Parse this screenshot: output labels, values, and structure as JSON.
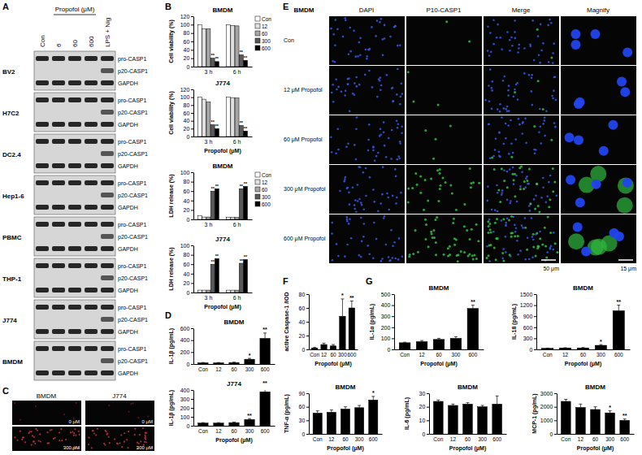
{
  "panel_labels": [
    "A",
    "B",
    "C",
    "D",
    "E",
    "F",
    "G"
  ],
  "blot": {
    "title": "Propofol (μM)",
    "lanes": [
      "Con",
      "6",
      "60",
      "600",
      "LPS + Nig"
    ],
    "groups": [
      {
        "cell": "BV2",
        "bands": [
          "pro-CASP1",
          "p20-CASP1",
          "GAPDH"
        ]
      },
      {
        "cell": "H7C2",
        "bands": [
          "pro-CASP1",
          "p20-CASP1",
          "GAPDH"
        ]
      },
      {
        "cell": "DC2.4",
        "bands": [
          "pro-CASP1",
          "p20-CASP1",
          "GAPDH"
        ]
      },
      {
        "cell": "Hep1-6",
        "bands": [
          "pro-CASP1",
          "p20-CASP1",
          "GAPDH"
        ]
      },
      {
        "cell": "PBMC",
        "bands": [
          "pro-CASP1",
          "p20-CASP1",
          "GAPDH"
        ]
      },
      {
        "cell": "THP-1",
        "bands": [
          "pro-CASP1",
          "p20-CASP1",
          "GAPDH"
        ]
      },
      {
        "cell": "J774",
        "bands": [
          "pro-CASP1",
          "p20-CASP1",
          "GAPDH"
        ]
      },
      {
        "cell": "BMDM",
        "bands": [
          "pro-CASP1",
          "p20-CASP1",
          "GAPDH"
        ]
      }
    ]
  },
  "micrograph_c": {
    "columns": [
      "BMDM",
      "J774"
    ],
    "dose_labels": [
      "0 μM",
      "300 μM"
    ]
  },
  "micrograph_e": {
    "cell": "BMDM",
    "columns": [
      "DAPI",
      "P10-CASP1",
      "Merge",
      "Magnify"
    ],
    "rows": [
      "Con",
      "12 μM Propofol",
      "60 μM Propofol",
      "300 μM Propofol",
      "600 μM Propofol"
    ],
    "scale_bars": [
      "50 μm",
      "15 μm"
    ]
  },
  "chart_data": [
    {
      "type": "bar",
      "title": "BMDM",
      "y_label": "Cell viability (%)",
      "categories": [
        "3 h",
        "6 h"
      ],
      "series": [
        {
          "name": "Con",
          "color": "#ffffff",
          "values": [
            100,
            100
          ]
        },
        {
          "name": "12",
          "color": "#e0e0e0",
          "values": [
            90,
            98
          ]
        },
        {
          "name": "60",
          "color": "#a6a6a6",
          "values": [
            90,
            97
          ]
        },
        {
          "name": "300",
          "color": "#595959",
          "values": [
            20,
            28
          ]
        },
        {
          "name": "600",
          "color": "#000000",
          "values": [
            12,
            15
          ]
        }
      ],
      "ylim": [
        0,
        120
      ],
      "yticks": [
        0,
        20,
        40,
        60,
        80,
        100,
        120
      ],
      "legend": "right",
      "annotations": [
        {
          "text": "**",
          "series": 3,
          "category": 0
        },
        {
          "text": "**",
          "series": 4,
          "category": 0
        },
        {
          "text": "**",
          "series": 3,
          "category": 1
        },
        {
          "text": "**",
          "series": 4,
          "category": 1
        }
      ]
    },
    {
      "type": "bar",
      "title": "J774",
      "y_label": "Cell viability (%)",
      "x_label": "Propofol (μM)",
      "categories": [
        "3 h",
        "6 h"
      ],
      "series": [
        {
          "name": "Con",
          "color": "#ffffff",
          "values": [
            100,
            100
          ]
        },
        {
          "name": "12",
          "color": "#e0e0e0",
          "values": [
            95,
            99
          ]
        },
        {
          "name": "60",
          "color": "#a6a6a6",
          "values": [
            88,
            98
          ]
        },
        {
          "name": "300",
          "color": "#595959",
          "values": [
            30,
            28
          ]
        },
        {
          "name": "600",
          "color": "#000000",
          "values": [
            20,
            14
          ]
        }
      ],
      "ylim": [
        0,
        120
      ],
      "yticks": [
        0,
        20,
        40,
        60,
        80,
        100,
        120
      ],
      "annotations": [
        {
          "text": "**",
          "series": 3,
          "category": 0
        },
        {
          "text": "**",
          "series": 4,
          "category": 0
        },
        {
          "text": "**",
          "series": 3,
          "category": 1
        },
        {
          "text": "**",
          "series": 4,
          "category": 1
        }
      ]
    },
    {
      "type": "bar",
      "title": "BMDM",
      "y_label": "LDH release (%)",
      "categories": [
        "3 h",
        "6 h"
      ],
      "series": [
        {
          "name": "Con",
          "color": "#ffffff",
          "values": [
            8,
            4
          ]
        },
        {
          "name": "12",
          "color": "#e0e0e0",
          "values": [
            5,
            4
          ]
        },
        {
          "name": "60",
          "color": "#a6a6a6",
          "values": [
            5,
            4
          ]
        },
        {
          "name": "300",
          "color": "#595959",
          "values": [
            60,
            65
          ]
        },
        {
          "name": "600",
          "color": "#000000",
          "values": [
            65,
            70
          ]
        }
      ],
      "ylim": [
        0,
        100
      ],
      "yticks": [
        0,
        20,
        40,
        60,
        80,
        100
      ],
      "legend": "right",
      "annotations": [
        {
          "text": "**",
          "series": 3,
          "category": 0
        },
        {
          "text": "**",
          "series": 4,
          "category": 0
        },
        {
          "text": "**",
          "series": 3,
          "category": 1
        },
        {
          "text": "**",
          "series": 4,
          "category": 1
        }
      ]
    },
    {
      "type": "bar",
      "title": "J774",
      "y_label": "LDH release (%)",
      "x_label": "Propofol (μM)",
      "categories": [
        "3 h",
        "6 h"
      ],
      "series": [
        {
          "name": "Con",
          "color": "#ffffff",
          "values": [
            5,
            5
          ]
        },
        {
          "name": "12",
          "color": "#e0e0e0",
          "values": [
            5,
            5
          ]
        },
        {
          "name": "60",
          "color": "#a6a6a6",
          "values": [
            5,
            5
          ]
        },
        {
          "name": "300",
          "color": "#595959",
          "values": [
            60,
            62
          ]
        },
        {
          "name": "600",
          "color": "#000000",
          "values": [
            72,
            70
          ]
        }
      ],
      "ylim": [
        0,
        100
      ],
      "yticks": [
        0,
        20,
        40,
        60,
        80,
        100
      ],
      "annotations": [
        {
          "text": "**",
          "series": 3,
          "category": 0
        },
        {
          "text": "**",
          "series": 4,
          "category": 0
        },
        {
          "text": "**",
          "series": 3,
          "category": 1
        },
        {
          "text": "**",
          "series": 4,
          "category": 1
        }
      ]
    },
    {
      "type": "bar",
      "title": "BMDM",
      "y_label": "IL-1β (pg/mL)",
      "categories": [
        "Con",
        "12",
        "60",
        "300",
        "600"
      ],
      "values": [
        20,
        20,
        25,
        80,
        430
      ],
      "errors": [
        5,
        5,
        5,
        15,
        90
      ],
      "color": "#000000",
      "ylim": [
        0,
        600
      ],
      "yticks": [
        0,
        200,
        400,
        600
      ],
      "annotations": [
        {
          "text": "*",
          "category": 3
        },
        {
          "text": "**",
          "category": 4
        }
      ]
    },
    {
      "type": "bar",
      "title": "J774",
      "y_label": "IL-1β (pg/mL)",
      "x_label": "Propofol (μM)",
      "categories": [
        "Con",
        "12",
        "60",
        "300",
        "600"
      ],
      "values": [
        30,
        30,
        35,
        70,
        380
      ],
      "errors": [
        5,
        5,
        5,
        10,
        60
      ],
      "color": "#000000",
      "ylim": [
        0,
        400
      ],
      "yticks": [
        0,
        100,
        200,
        300,
        400
      ],
      "annotations": [
        {
          "text": "**",
          "category": 3
        },
        {
          "text": "**",
          "category": 4
        }
      ]
    },
    {
      "type": "bar",
      "y_label": "active Caspase-1 /IOD",
      "x_label": "Propofol (μM)",
      "categories": [
        "Con",
        "12",
        "60",
        "300",
        "600"
      ],
      "values": [
        2,
        7,
        5,
        48,
        60
      ],
      "errors": [
        1,
        2,
        2,
        25,
        10
      ],
      "color": "#000000",
      "ylim": [
        0,
        80
      ],
      "yticks": [
        0,
        20,
        40,
        60,
        80
      ],
      "annotations": [
        {
          "text": "*",
          "category": 3
        },
        {
          "text": "**",
          "category": 4
        }
      ]
    },
    {
      "type": "bar",
      "title": "BMDM",
      "y_label": "IL-1α (pg/mL)",
      "x_label": "Propofol (μM)",
      "categories": [
        "Con",
        "12",
        "60",
        "300",
        "600"
      ],
      "values": [
        60,
        70,
        90,
        100,
        370
      ],
      "errors": [
        5,
        10,
        10,
        15,
        30
      ],
      "color": "#000000",
      "ylim": [
        0,
        500
      ],
      "yticks": [
        0,
        100,
        200,
        300,
        400,
        500
      ],
      "annotations": [
        {
          "text": "**",
          "category": 4
        }
      ]
    },
    {
      "type": "bar",
      "title": "BMDM",
      "y_label": "IL-18 (pg/mL)",
      "x_label": "Propofol (μM)",
      "categories": [
        "Con",
        "12",
        "60",
        "300",
        "600"
      ],
      "values": [
        30,
        40,
        40,
        110,
        1050
      ],
      "errors": [
        5,
        5,
        10,
        20,
        150
      ],
      "color": "#000000",
      "ylim": [
        0,
        1500
      ],
      "yticks": [
        0,
        300,
        600,
        900,
        1200,
        1500
      ],
      "annotations": [
        {
          "text": "*",
          "category": 3
        },
        {
          "text": "**",
          "category": 4
        }
      ]
    },
    {
      "type": "bar",
      "title": "BMDM",
      "y_label": "TNF-α (pg/mL)",
      "x_label": "Propofol (μM)",
      "categories": [
        "Con",
        "12",
        "60",
        "300",
        "600"
      ],
      "values": [
        46,
        48,
        55,
        58,
        75
      ],
      "errors": [
        5,
        5,
        5,
        5,
        8
      ],
      "color": "#000000",
      "ylim": [
        0,
        90
      ],
      "yticks": [
        0,
        30,
        60,
        90
      ],
      "annotations": [
        {
          "text": "*",
          "category": 4
        }
      ]
    },
    {
      "type": "bar",
      "title": "BMDM",
      "y_label": "IL-6 (pg/mL)",
      "x_label": "Propofol (μM)",
      "categories": [
        "Con",
        "12",
        "60",
        "300",
        "600"
      ],
      "values": [
        24,
        21,
        22,
        20,
        22
      ],
      "errors": [
        1,
        1,
        1,
        1,
        6
      ],
      "color": "#000000",
      "ylim": [
        0,
        30
      ],
      "yticks": [
        0,
        10,
        20,
        30
      ]
    },
    {
      "type": "bar",
      "title": "BMDM",
      "y_label": "MCP-1 (pg/mL)",
      "x_label": "Propofol (μM)",
      "categories": [
        "Con",
        "12",
        "60",
        "300",
        "600"
      ],
      "values": [
        2400,
        1950,
        1800,
        1550,
        1000
      ],
      "errors": [
        150,
        250,
        200,
        150,
        100
      ],
      "color": "#000000",
      "ylim": [
        0,
        3000
      ],
      "yticks": [
        0,
        1000,
        2000,
        3000
      ],
      "annotations": [
        {
          "text": "*",
          "category": 3
        },
        {
          "text": "**",
          "category": 4
        }
      ]
    }
  ]
}
